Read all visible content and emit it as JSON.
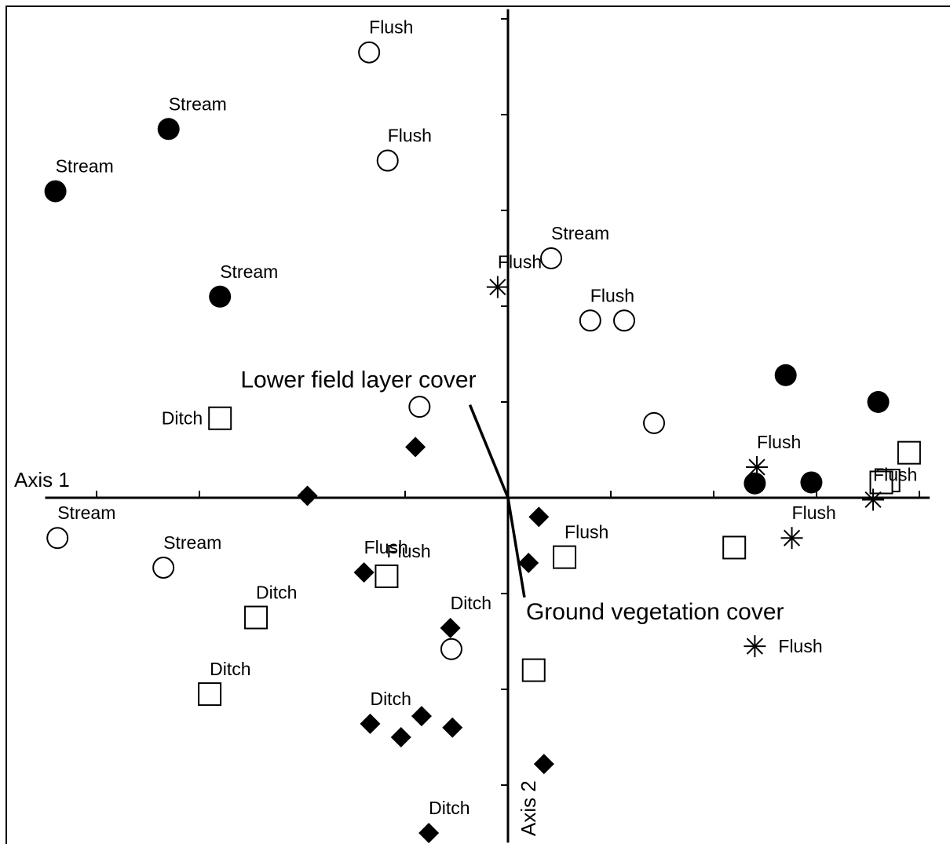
{
  "chart_data": {
    "type": "scatter",
    "title": "",
    "xlabel": "Axis 1",
    "ylabel": "Axis 2",
    "xlim": [
      -4.5,
      4.1
    ],
    "ylim": [
      -3.6,
      5.1
    ],
    "grid": false,
    "legend": "none",
    "tick_step": 1,
    "vectors": [
      {
        "label": "Lower field layer cover",
        "x": -0.37,
        "y": 0.97
      },
      {
        "label": "Ground vegetation cover",
        "x": 0.16,
        "y": -1.04
      }
    ],
    "series": [
      {
        "marker": "filled-circle",
        "points": [
          {
            "x": -3.3,
            "y": 3.85,
            "label": "Stream"
          },
          {
            "x": -4.4,
            "y": 3.2,
            "label": "Stream"
          },
          {
            "x": -2.8,
            "y": 2.1,
            "label": "Stream"
          },
          {
            "x": 2.7,
            "y": 1.28,
            "label": ""
          },
          {
            "x": 3.6,
            "y": 1.0,
            "label": ""
          },
          {
            "x": 2.4,
            "y": 0.15,
            "label": ""
          },
          {
            "x": 2.95,
            "y": 0.16,
            "label": ""
          }
        ]
      },
      {
        "marker": "open-circle",
        "points": [
          {
            "x": -1.35,
            "y": 4.65,
            "label": "Flush"
          },
          {
            "x": -1.17,
            "y": 3.52,
            "label": "Flush"
          },
          {
            "x": 0.42,
            "y": 2.5,
            "label": "Stream"
          },
          {
            "x": 0.8,
            "y": 1.85,
            "label": "Flush"
          },
          {
            "x": 1.13,
            "y": 1.85,
            "label": ""
          },
          {
            "x": -0.86,
            "y": 0.95,
            "label": ""
          },
          {
            "x": 1.42,
            "y": 0.78,
            "label": ""
          },
          {
            "x": -4.38,
            "y": -0.42,
            "label": "Stream"
          },
          {
            "x": -3.35,
            "y": -0.73,
            "label": "Stream"
          },
          {
            "x": -0.55,
            "y": -1.58,
            "label": ""
          }
        ]
      },
      {
        "marker": "filled-diamond",
        "points": [
          {
            "x": -0.9,
            "y": 0.53,
            "label": ""
          },
          {
            "x": -1.95,
            "y": 0.02,
            "label": ""
          },
          {
            "x": 0.3,
            "y": -0.2,
            "label": ""
          },
          {
            "x": -1.4,
            "y": -0.78,
            "label": "Flush"
          },
          {
            "x": 0.2,
            "y": -0.68,
            "label": ""
          },
          {
            "x": -0.56,
            "y": -1.36,
            "label": "Ditch"
          },
          {
            "x": -1.34,
            "y": -2.36,
            "label": "Ditch"
          },
          {
            "x": -1.04,
            "y": -2.5,
            "label": ""
          },
          {
            "x": -0.84,
            "y": -2.28,
            "label": ""
          },
          {
            "x": -0.54,
            "y": -2.4,
            "label": ""
          },
          {
            "x": 0.35,
            "y": -2.78,
            "label": ""
          },
          {
            "x": -0.77,
            "y": -3.5,
            "label": "Ditch"
          }
        ]
      },
      {
        "marker": "open-square",
        "points": [
          {
            "x": -2.8,
            "y": 0.83,
            "label": "Ditch"
          },
          {
            "x": 3.9,
            "y": 0.47,
            "label": ""
          },
          {
            "x": 3.7,
            "y": 0.18,
            "label": ""
          },
          {
            "x": 3.63,
            "y": 0.16,
            "label": ""
          },
          {
            "x": 0.55,
            "y": -0.62,
            "label": "Flush"
          },
          {
            "x": -1.18,
            "y": -0.82,
            "label": "Flush"
          },
          {
            "x": 2.2,
            "y": -0.52,
            "label": ""
          },
          {
            "x": -2.45,
            "y": -1.25,
            "label": "Ditch"
          },
          {
            "x": -2.9,
            "y": -2.05,
            "label": "Ditch"
          },
          {
            "x": 0.25,
            "y": -1.8,
            "label": ""
          }
        ]
      },
      {
        "marker": "asterisk",
        "points": [
          {
            "x": -0.1,
            "y": 2.2,
            "label": "Flush"
          },
          {
            "x": 2.42,
            "y": 0.32,
            "label": "Flush"
          },
          {
            "x": 3.55,
            "y": -0.02,
            "label": "Flush"
          },
          {
            "x": 2.76,
            "y": -0.42,
            "label": "Flush"
          },
          {
            "x": 2.4,
            "y": -1.55,
            "label": "Flush"
          }
        ]
      }
    ]
  }
}
